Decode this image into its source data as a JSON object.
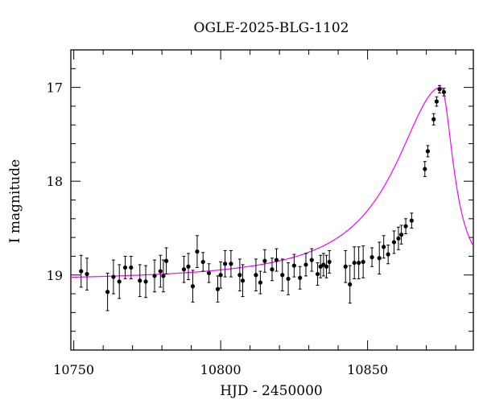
{
  "chart_data": {
    "type": "scatter",
    "title": "OGLE-2025-BLG-1102",
    "xlabel": "HJD - 2450000",
    "ylabel": "I magnitude",
    "xlim": [
      10749,
      10886
    ],
    "ylim": [
      19.8,
      16.6
    ],
    "y_inverted": true,
    "grid": false,
    "legend": "none",
    "x_ticks": [
      10750,
      10800,
      10850
    ],
    "y_ticks": [
      17,
      18,
      19
    ],
    "x_tick_labels": [
      "10750",
      "10800",
      "10850"
    ],
    "y_tick_labels": [
      "17",
      "18",
      "19"
    ],
    "colors": {
      "points": "#000000",
      "model": "#ff00ff",
      "frame": "#000000"
    },
    "series": [
      {
        "kind": "points-with-errorbars",
        "x": [
          10752.5,
          10754.5,
          10761.5,
          10763.5,
          10765.5,
          10767.5,
          10769.5,
          10772.5,
          10774.5,
          10777.5,
          10779.5,
          10780.5,
          10781.5,
          10787.5,
          10789.0,
          10790.5,
          10792.0,
          10794.0,
          10796.0,
          10799.0,
          10800.0,
          10801.5,
          10803.5,
          10806.5,
          10807.5,
          10812.0,
          10813.5,
          10815.0,
          10817.5,
          10819.0,
          10821.0,
          10823.0,
          10825.0,
          10827.0,
          10829.0,
          10831.0,
          10833.0,
          10834.0,
          10835.0,
          10836.0,
          10837.0,
          10842.5,
          10844.0,
          10845.5,
          10847.0,
          10848.5,
          10851.5,
          10854.0,
          10855.5,
          10857.0,
          10859.0,
          10860.5,
          10861.5,
          10863.0,
          10865.0,
          10869.5,
          10870.5,
          10872.5,
          10873.5,
          10874.5,
          10876.0
        ],
        "y": [
          18.96,
          18.99,
          19.18,
          19.02,
          19.07,
          18.92,
          18.92,
          19.06,
          19.07,
          19.01,
          18.96,
          19.01,
          18.85,
          18.94,
          18.91,
          19.12,
          18.75,
          18.86,
          18.98,
          19.15,
          19.0,
          18.88,
          18.88,
          19.0,
          19.06,
          19.0,
          19.08,
          18.85,
          18.94,
          18.84,
          19.0,
          19.04,
          18.9,
          19.03,
          18.89,
          18.84,
          18.99,
          18.91,
          18.89,
          18.91,
          18.86,
          18.91,
          19.1,
          18.87,
          18.87,
          18.86,
          18.81,
          18.82,
          18.7,
          18.78,
          18.65,
          18.61,
          18.57,
          18.48,
          18.42,
          17.87,
          17.68,
          17.34,
          17.15,
          17.02,
          17.05
        ],
        "err": [
          0.17,
          0.17,
          0.2,
          0.18,
          0.18,
          0.12,
          0.12,
          0.17,
          0.17,
          0.17,
          0.17,
          0.17,
          0.14,
          0.14,
          0.14,
          0.17,
          0.17,
          0.1,
          0.1,
          0.14,
          0.14,
          0.14,
          0.14,
          0.17,
          0.17,
          0.17,
          0.12,
          0.12,
          0.12,
          0.12,
          0.17,
          0.17,
          0.12,
          0.12,
          0.12,
          0.12,
          0.12,
          0.12,
          0.12,
          0.12,
          0.12,
          0.17,
          0.2,
          0.17,
          0.17,
          0.17,
          0.1,
          0.17,
          0.12,
          0.1,
          0.12,
          0.12,
          0.1,
          0.08,
          0.08,
          0.08,
          0.06,
          0.06,
          0.05,
          0.04,
          0.04
        ]
      },
      {
        "kind": "model-curve",
        "t0": 10875.0,
        "base_mag": 19.07,
        "peak_mag": 17.0,
        "rise_scale": 19.0,
        "fall_scale": 5.2
      }
    ]
  }
}
